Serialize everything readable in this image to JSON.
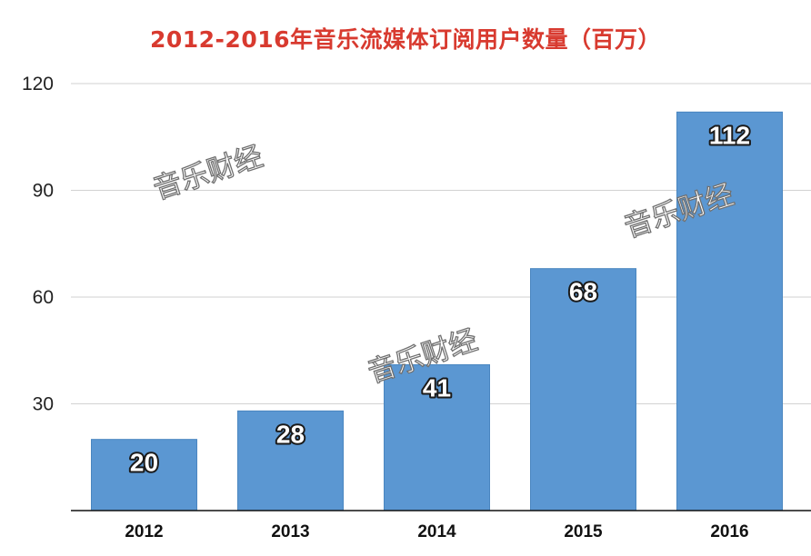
{
  "colors": {
    "title": "#d83a2f",
    "bar": "#5b97d2",
    "bar_edge": "#4a86c0",
    "grid": "#d2d2d2",
    "axis": "#111111"
  },
  "watermark_text": "音乐财经",
  "chart_data": {
    "type": "bar",
    "title": "2012-2016年音乐流媒体订阅用户数量（百万）",
    "xlabel": "",
    "ylabel": "",
    "categories": [
      "2012",
      "2013",
      "2014",
      "2015",
      "2016"
    ],
    "values": [
      20,
      28,
      41,
      68,
      112
    ],
    "data_labels": [
      "20",
      "28",
      "41",
      "68",
      "112"
    ],
    "ylim": [
      0,
      120
    ],
    "yticks": [
      30,
      60,
      90,
      120
    ],
    "ytick_labels": [
      "30",
      "60",
      "90",
      "120"
    ],
    "grid": true,
    "legend": "none"
  }
}
